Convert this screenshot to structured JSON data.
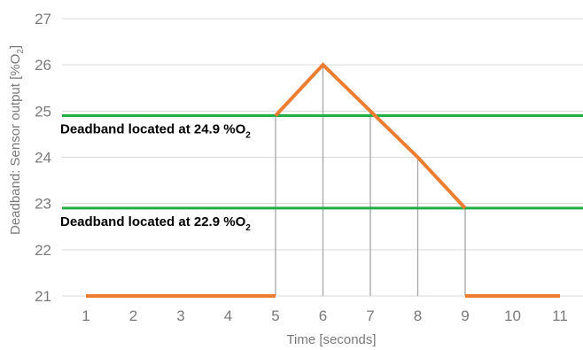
{
  "chart_data": {
    "type": "line",
    "xlabel": "Time [seconds]",
    "ylabel": "Deadband: Sensor output [%O",
    "ylabel_sub": "2",
    "ylabel_close": "]",
    "xlim": [
      1,
      11
    ],
    "ylim": [
      21,
      27
    ],
    "x_ticks": [
      "1",
      "2",
      "3",
      "4",
      "5",
      "6",
      "7",
      "8",
      "9",
      "10",
      "11"
    ],
    "y_ticks": [
      "21",
      "22",
      "23",
      "24",
      "25",
      "26",
      "27"
    ],
    "grid": "horizontal",
    "sensor_series": {
      "color": "#ED7D31",
      "segments": [
        [
          [
            1,
            21
          ],
          [
            5,
            21
          ]
        ],
        [
          [
            5,
            24.9
          ],
          [
            6,
            26
          ],
          [
            7,
            25
          ],
          [
            8,
            24
          ],
          [
            9,
            22.9
          ]
        ],
        [
          [
            9,
            21
          ],
          [
            11,
            21
          ]
        ]
      ]
    },
    "droplines_x": [
      5,
      6,
      7,
      8,
      9
    ],
    "deadbands": [
      {
        "value": 24.9,
        "label": "Deadband located at 24.9 %O",
        "sub": "2",
        "color": "#1FAE48"
      },
      {
        "value": 22.9,
        "label": "Deadband located at 22.9 %O",
        "sub": "2",
        "color": "#1FAE48"
      }
    ],
    "colors": {
      "grid": "#d9d9d9",
      "droplines": "#a6a6a6",
      "text": "#7a7a7a"
    }
  }
}
